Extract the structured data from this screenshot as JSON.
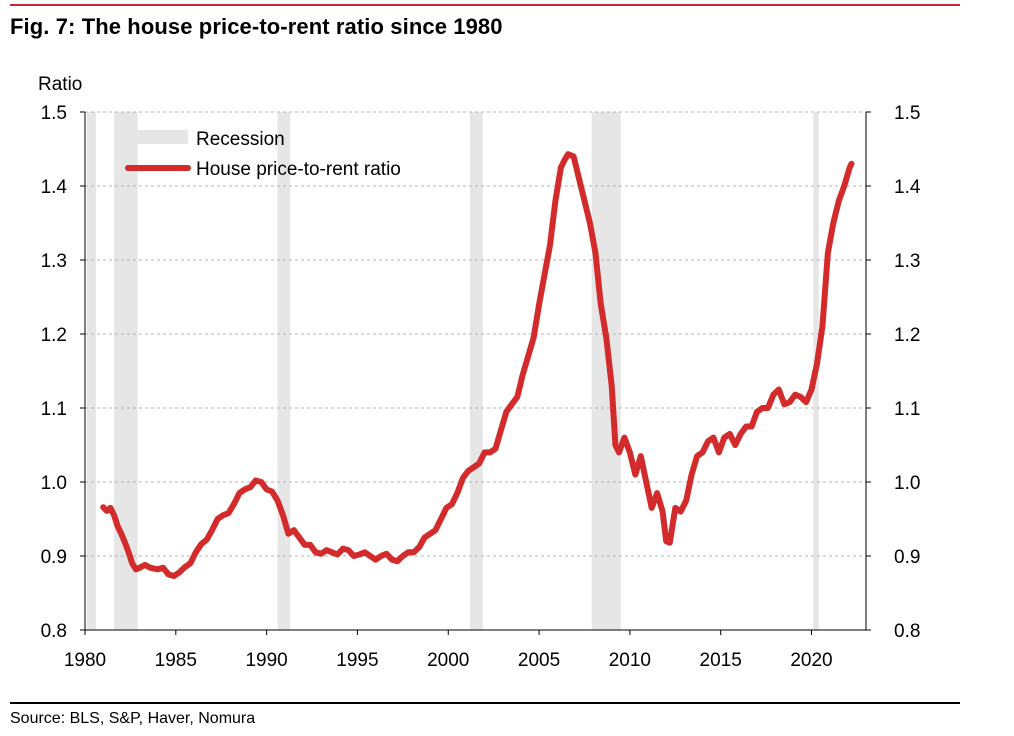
{
  "header": {
    "title": "Fig. 7: The house price-to-rent ratio since 1980"
  },
  "footer": {
    "source": "Source: BLS, S&P, Haver, Nomura"
  },
  "colors": {
    "series": "#d32b2b",
    "recession": "#e6e6e6",
    "rule": "#c8282d",
    "grid": "#b4b4b4"
  },
  "chart_data": {
    "type": "line",
    "title": "Fig. 7: The house price-to-rent ratio since 1980",
    "ylabel": "Ratio",
    "xlabel": "",
    "xlim": [
      1980,
      2023
    ],
    "ylim": [
      0.8,
      1.5
    ],
    "x_ticks": [
      1980,
      1985,
      1990,
      1995,
      2000,
      2005,
      2010,
      2015,
      2020
    ],
    "x_tick_labels": [
      "1980",
      "1985",
      "1990",
      "1995",
      "2000",
      "2005",
      "2010",
      "2015",
      "2020"
    ],
    "y_ticks": [
      0.8,
      0.9,
      1.0,
      1.1,
      1.2,
      1.3,
      1.4,
      1.5
    ],
    "y_tick_labels": [
      "0.8",
      "0.9",
      "1.0",
      "1.1",
      "1.2",
      "1.3",
      "1.4",
      "1.5"
    ],
    "grid": "horizontal dashed",
    "legend_position": "top-left",
    "legend": [
      {
        "label": "Recession",
        "kind": "bar"
      },
      {
        "label": "House price-to-rent ratio",
        "kind": "line"
      }
    ],
    "recessions": [
      [
        1980.1,
        1980.6
      ],
      [
        1981.6,
        1982.9
      ],
      [
        1990.6,
        1991.3
      ],
      [
        2001.2,
        2001.9
      ],
      [
        2007.9,
        2009.5
      ],
      [
        2020.1,
        2020.4
      ]
    ],
    "series": [
      {
        "name": "House price-to-rent ratio",
        "x": [
          1981.0,
          1981.2,
          1981.4,
          1981.6,
          1981.8,
          1982.0,
          1982.2,
          1982.4,
          1982.6,
          1982.8,
          1983.0,
          1983.3,
          1983.6,
          1984.0,
          1984.3,
          1984.6,
          1984.9,
          1985.2,
          1985.5,
          1985.8,
          1986.1,
          1986.4,
          1986.7,
          1987.0,
          1987.3,
          1987.6,
          1987.9,
          1988.2,
          1988.5,
          1988.8,
          1989.1,
          1989.4,
          1989.7,
          1990.0,
          1990.3,
          1990.6,
          1990.9,
          1991.2,
          1991.5,
          1991.8,
          1992.1,
          1992.4,
          1992.7,
          1993.0,
          1993.3,
          1993.6,
          1993.9,
          1994.2,
          1994.5,
          1994.8,
          1995.1,
          1995.4,
          1995.7,
          1996.0,
          1996.3,
          1996.6,
          1996.9,
          1997.2,
          1997.5,
          1997.8,
          1998.1,
          1998.4,
          1998.7,
          1999.0,
          1999.3,
          1999.6,
          1999.9,
          2000.2,
          2000.5,
          2000.8,
          2001.1,
          2001.4,
          2001.7,
          2002.0,
          2002.3,
          2002.6,
          2002.9,
          2003.2,
          2003.5,
          2003.8,
          2004.1,
          2004.4,
          2004.7,
          2005.0,
          2005.3,
          2005.6,
          2005.9,
          2006.2,
          2006.4,
          2006.6,
          2006.9,
          2007.2,
          2007.5,
          2007.8,
          2008.1,
          2008.4,
          2008.7,
          2009.0,
          2009.2,
          2009.4,
          2009.7,
          2010.0,
          2010.3,
          2010.6,
          2010.9,
          2011.2,
          2011.5,
          2011.8,
          2012.0,
          2012.2,
          2012.5,
          2012.8,
          2013.1,
          2013.4,
          2013.7,
          2014.0,
          2014.3,
          2014.6,
          2014.9,
          2015.2,
          2015.5,
          2015.8,
          2016.1,
          2016.4,
          2016.7,
          2017.0,
          2017.3,
          2017.6,
          2017.9,
          2018.2,
          2018.5,
          2018.8,
          2019.1,
          2019.4,
          2019.7,
          2020.0,
          2020.3,
          2020.6,
          2020.9,
          2021.2,
          2021.5,
          2021.8,
          2022.1,
          2022.2
        ],
        "y": [
          0.966,
          0.961,
          0.965,
          0.955,
          0.94,
          0.93,
          0.918,
          0.905,
          0.89,
          0.882,
          0.884,
          0.888,
          0.884,
          0.882,
          0.884,
          0.875,
          0.873,
          0.878,
          0.885,
          0.89,
          0.905,
          0.916,
          0.922,
          0.935,
          0.95,
          0.955,
          0.958,
          0.97,
          0.985,
          0.99,
          0.993,
          1.002,
          1.0,
          0.99,
          0.987,
          0.975,
          0.955,
          0.93,
          0.935,
          0.925,
          0.915,
          0.915,
          0.905,
          0.903,
          0.908,
          0.905,
          0.902,
          0.91,
          0.908,
          0.9,
          0.902,
          0.905,
          0.9,
          0.895,
          0.9,
          0.903,
          0.895,
          0.893,
          0.9,
          0.905,
          0.905,
          0.912,
          0.925,
          0.93,
          0.935,
          0.95,
          0.965,
          0.97,
          0.985,
          1.005,
          1.015,
          1.02,
          1.025,
          1.04,
          1.04,
          1.045,
          1.07,
          1.095,
          1.105,
          1.115,
          1.145,
          1.17,
          1.195,
          1.24,
          1.28,
          1.32,
          1.38,
          1.425,
          1.435,
          1.443,
          1.44,
          1.41,
          1.38,
          1.35,
          1.31,
          1.24,
          1.195,
          1.13,
          1.05,
          1.04,
          1.06,
          1.04,
          1.01,
          1.035,
          1.0,
          0.965,
          0.985,
          0.96,
          0.92,
          0.918,
          0.965,
          0.96,
          0.975,
          1.01,
          1.035,
          1.04,
          1.055,
          1.06,
          1.04,
          1.06,
          1.065,
          1.05,
          1.065,
          1.075,
          1.075,
          1.095,
          1.1,
          1.1,
          1.118,
          1.125,
          1.105,
          1.108,
          1.118,
          1.115,
          1.108,
          1.125,
          1.16,
          1.21,
          1.31,
          1.35,
          1.38,
          1.4,
          1.425,
          1.43
        ]
      }
    ]
  }
}
